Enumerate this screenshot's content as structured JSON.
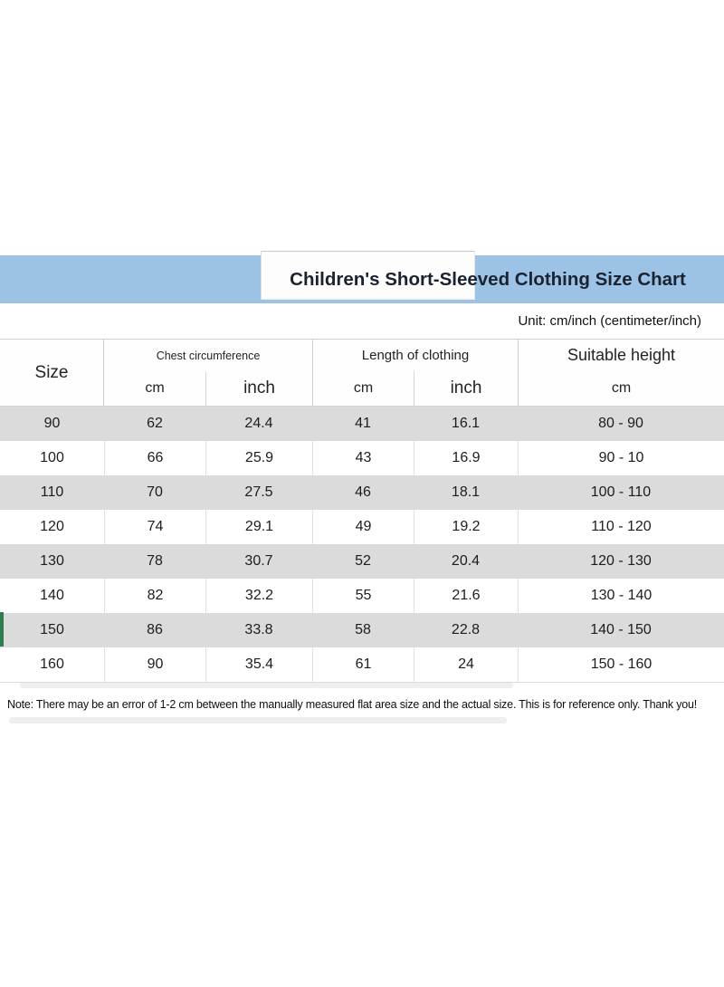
{
  "chart_data": {
    "type": "table",
    "title": "Children's Short-Sleeved Clothing Size Chart",
    "columns": [
      "Size",
      "Chest circumference (cm)",
      "Chest circumference (inch)",
      "Length of clothing (cm)",
      "Length of clothing (inch)",
      "Suitable height (cm)"
    ],
    "rows": [
      [
        "90",
        "62",
        "24.4",
        "41",
        "16.1",
        "80 - 90"
      ],
      [
        "100",
        "66",
        "25.9",
        "43",
        "16.9",
        "90 - 10"
      ],
      [
        "110",
        "70",
        "27.5",
        "46",
        "18.1",
        "100 - 110"
      ],
      [
        "120",
        "74",
        "29.1",
        "49",
        "19.2",
        "110 - 120"
      ],
      [
        "130",
        "78",
        "30.7",
        "52",
        "20.4",
        "120 - 130"
      ],
      [
        "140",
        "82",
        "32.2",
        "55",
        "21.6",
        "130 - 140"
      ],
      [
        "150",
        "86",
        "33.8",
        "58",
        "22.8",
        "140 - 150"
      ],
      [
        "160",
        "90",
        "35.4",
        "61",
        "24",
        "150 - 160"
      ]
    ]
  },
  "ui": {
    "unit_label": "Unit: cm/inch (centimeter/inch)",
    "header": {
      "size": "Size",
      "chest_group": "Chest circumference",
      "length_group": "Length of clothing",
      "height_group": "Suitable height",
      "sub_cm": "cm",
      "sub_inch": "inch"
    },
    "note": "Note: There may be an error of 1-2 cm between the manually measured flat area size and the actual size. This is for reference only. Thank you!",
    "colors": {
      "band_blue": "#9cc3e6",
      "row_gray": "#dbdbdb",
      "accent_green": "#2e7d4f"
    }
  }
}
